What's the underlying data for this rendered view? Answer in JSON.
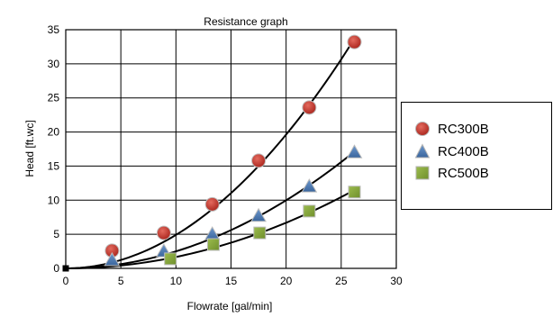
{
  "chart_data": {
    "type": "scatter",
    "title": "Resistance graph",
    "xlabel": "Flowrate [gal/min]",
    "ylabel": "Head [ft.wc]",
    "xlim": [
      0,
      30
    ],
    "ylim": [
      0,
      35
    ],
    "xticks": [
      "0",
      "5",
      "10",
      "15",
      "20",
      "25",
      "30"
    ],
    "yticks": [
      "0",
      "5",
      "10",
      "15",
      "20",
      "25",
      "30",
      "35"
    ],
    "grid": true,
    "legend_position": "right",
    "origin_marker": [
      0,
      0
    ],
    "series": [
      {
        "name": "RC300B",
        "marker": "circle",
        "color": "#c0392b",
        "x": [
          4.2,
          8.9,
          13.3,
          17.5,
          22.1,
          26.2
        ],
        "y": [
          2.6,
          5.2,
          9.4,
          15.8,
          23.6,
          33.2
        ]
      },
      {
        "name": "RC400B",
        "marker": "triangle",
        "color": "#4a78b0",
        "x": [
          4.2,
          8.9,
          13.3,
          17.5,
          22.1,
          26.2
        ],
        "y": [
          1.2,
          2.5,
          5.0,
          7.7,
          12.0,
          17.0
        ]
      },
      {
        "name": "RC500B",
        "marker": "square",
        "color": "#86a83a",
        "x": [
          9.5,
          13.4,
          17.6,
          22.1,
          26.2
        ],
        "y": [
          1.4,
          3.5,
          5.2,
          8.4,
          11.2
        ]
      }
    ]
  }
}
